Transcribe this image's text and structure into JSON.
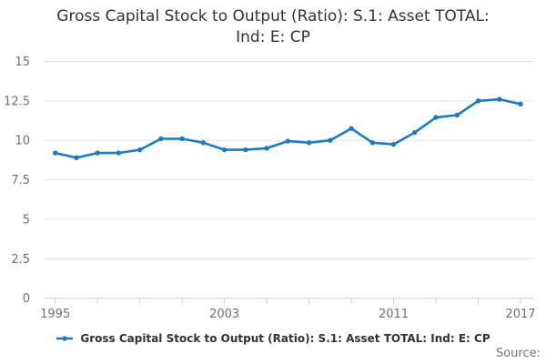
{
  "title": {
    "line1": "Gross Capital Stock to Output (Ratio): S.1: Asset TOTAL:",
    "line2": "Ind: E: CP"
  },
  "legend": {
    "label": "Gross Capital Stock to Output (Ratio): S.1: Asset TOTAL: Ind: E: CP"
  },
  "source": {
    "label": "Source:"
  },
  "colors": {
    "series_line": "#1d7cbf",
    "grid_line": "#e6e6e6",
    "axis_line": "#c6d2df",
    "axis_text": "#707070",
    "title_text": "#333333"
  },
  "chart_data": {
    "type": "line",
    "title": "Gross Capital Stock to Output (Ratio): S.1: Asset TOTAL: Ind: E: CP",
    "series_name": "Gross Capital Stock to Output (Ratio): S.1: Asset TOTAL: Ind: E: CP",
    "x": [
      1995,
      1996,
      1997,
      1998,
      1999,
      2000,
      2001,
      2002,
      2003,
      2004,
      2005,
      2006,
      2007,
      2008,
      2009,
      2010,
      2011,
      2012,
      2013,
      2014,
      2015,
      2016,
      2017
    ],
    "values": [
      9.2,
      8.9,
      9.2,
      9.2,
      9.4,
      10.1,
      10.1,
      9.85,
      9.4,
      9.4,
      9.5,
      9.95,
      9.85,
      10.0,
      10.75,
      9.85,
      9.75,
      10.5,
      11.45,
      11.6,
      12.5,
      12.6,
      12.3
    ],
    "ylim": [
      0,
      15
    ],
    "yticks": [
      0,
      2.5,
      5,
      7.5,
      10,
      12.5,
      15
    ],
    "ytick_labels": [
      "0",
      "2.5",
      "5",
      "7.5",
      "10",
      "12.5",
      "15"
    ],
    "xtick_years_step": 2,
    "xtick_labels": [
      "1995",
      "2003",
      "2011",
      "2017"
    ],
    "grid": "horizontal",
    "legend_position": "bottom",
    "marker": "circle"
  }
}
